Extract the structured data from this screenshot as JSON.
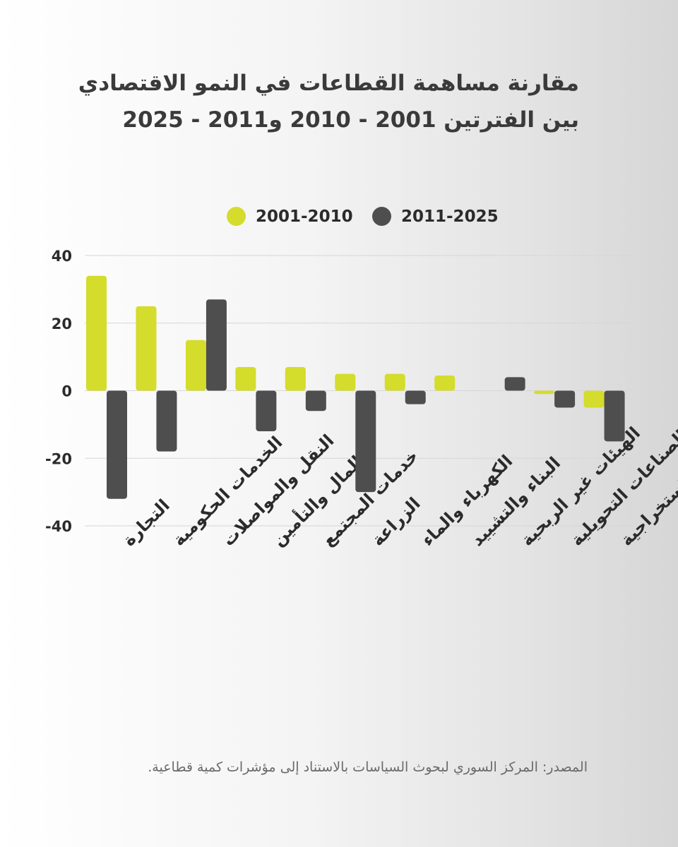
{
  "title": {
    "line1": "مقارنة مساهمة القطاعات في النمو الاقتصادي",
    "line2": "بين الفترتين 2001 - 2010 و2011 - 2025"
  },
  "source": "المصدر: المركز السوري لبحوث السياسات بالاستناد إلى مؤشرات كمية قطاعية.",
  "colors": {
    "series1": "#d4dc2c",
    "series2": "#4e4e4e",
    "grid": "#d6d6d6"
  },
  "chart_data": {
    "type": "bar",
    "categories": [
      "التجارة",
      "الخدمات الحكومية",
      "النقل والمواصلات",
      "المال والتأمين",
      "خدمات المجتمع",
      "الزراعة",
      "الكهرباء والماء",
      "البناء والتشييد",
      "الهيئات غير الربحية",
      "الصناعات التحويلية",
      "الصناعات الاستخراجية"
    ],
    "series": [
      {
        "name": "2001-2010",
        "values": [
          34,
          25,
          15,
          7,
          7,
          5,
          5,
          4.5,
          0,
          -1,
          -5
        ]
      },
      {
        "name": "2011-2025",
        "values": [
          -32,
          -18,
          27,
          -12,
          -6,
          -30,
          -4,
          0,
          4,
          -5,
          -15
        ]
      }
    ],
    "ylim": [
      -40,
      40
    ],
    "yticks": [
      "40",
      "20",
      "0",
      "-20",
      "-40"
    ],
    "grid": true,
    "legend_position": "top"
  }
}
